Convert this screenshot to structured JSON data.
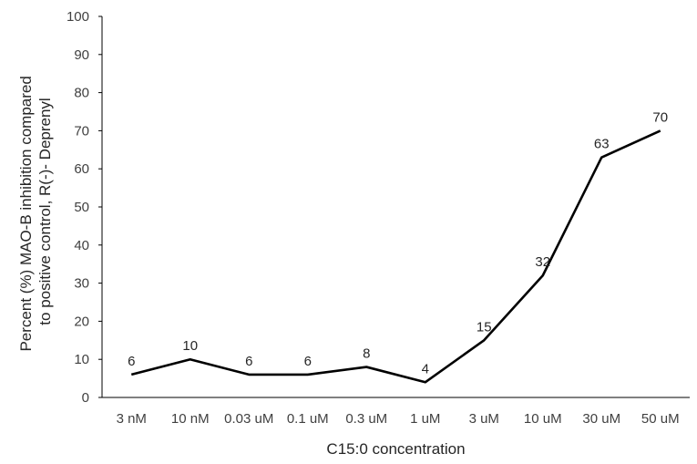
{
  "chart_data": {
    "type": "line",
    "title": "",
    "xlabel": "C15:0 concentration",
    "ylabel_lines": [
      "Percent (%) MAO-B inhibition compared",
      "to positive control, R(-)- Deprenyl"
    ],
    "categories": [
      "3 nM",
      "10 nM",
      "0.03 uM",
      "0.1 uM",
      "0.3 uM",
      "1 uM",
      "3 uM",
      "10 uM",
      "30 uM",
      "50 uM"
    ],
    "series": [
      {
        "values": [
          6,
          10,
          6,
          6,
          8,
          4,
          15,
          32,
          63,
          70
        ]
      }
    ],
    "ylim": [
      0,
      100
    ],
    "yticks": [
      0,
      10,
      20,
      30,
      40,
      50,
      60,
      70,
      80,
      90,
      100
    ],
    "grid": false,
    "legend": "none",
    "line_color": "#000000"
  }
}
